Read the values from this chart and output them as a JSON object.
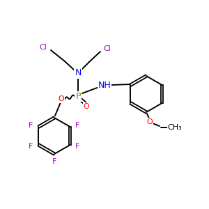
{
  "bg_color": "#ffffff",
  "bond_color": "#000000",
  "atom_colors": {
    "Cl": "#9900cc",
    "N": "#0000ff",
    "P": "#8b8000",
    "O": "#ff0000",
    "F": "#9900cc",
    "NH": "#0000ff"
  },
  "figsize": [
    3.0,
    3.0
  ],
  "dpi": 100
}
